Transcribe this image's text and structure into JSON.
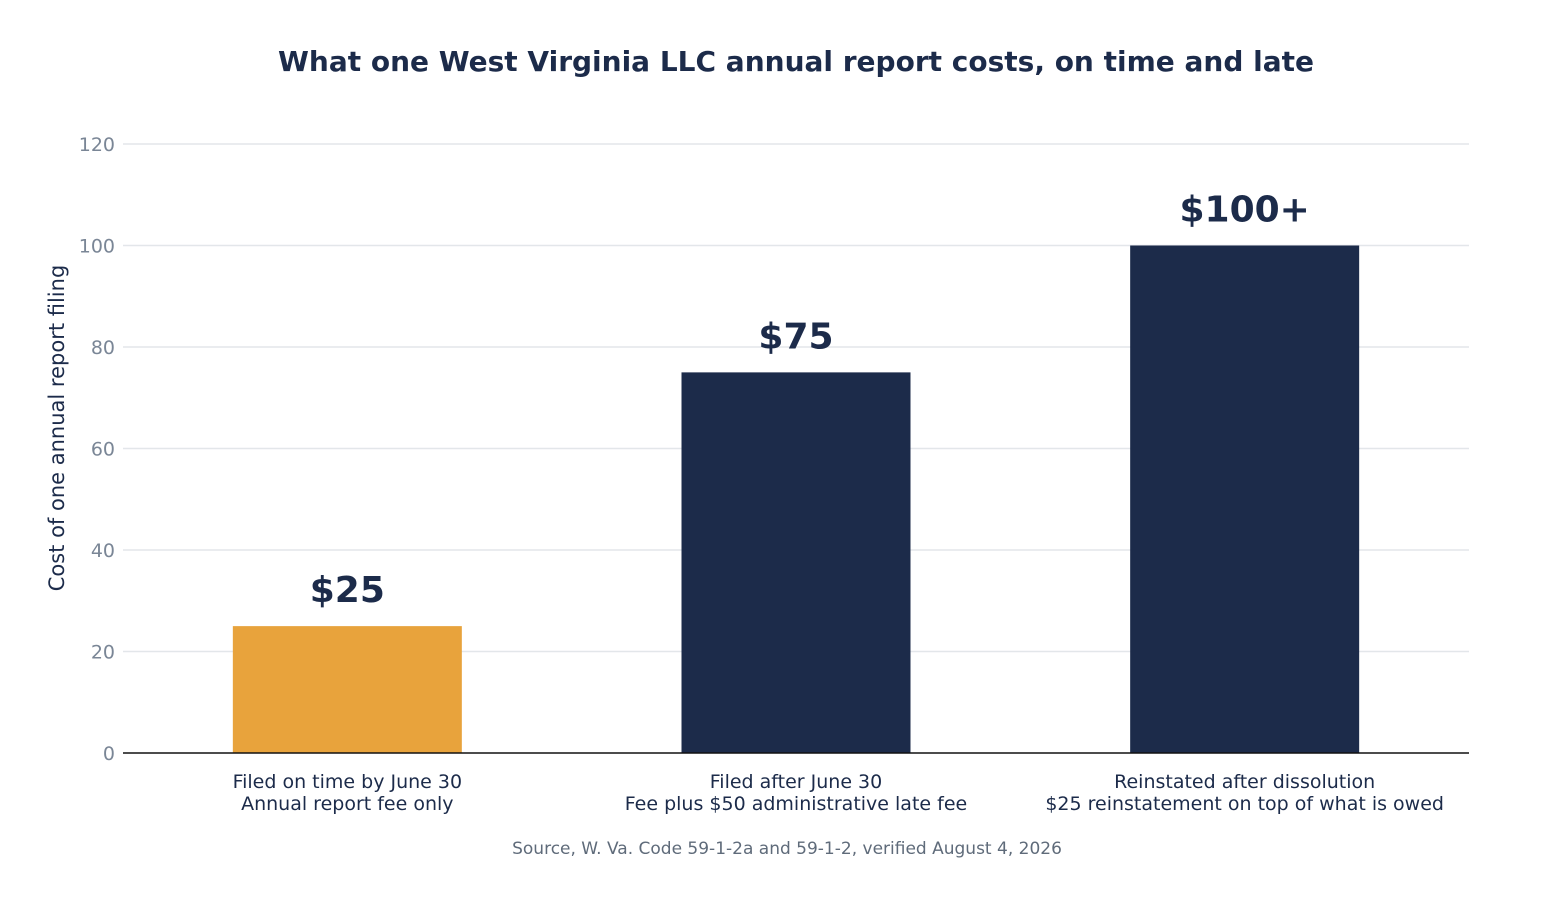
{
  "chart_data": {
    "type": "bar",
    "title": "What one West Virginia LLC annual report costs, on time and late",
    "ylabel": "Cost of one annual report filing",
    "xlabel": "",
    "ylim": [
      0,
      120
    ],
    "yticks": [
      0,
      20,
      40,
      60,
      80,
      100,
      120
    ],
    "grid": true,
    "categories": [
      [
        "Filed on time by June 30",
        "Annual report fee only"
      ],
      [
        "Filed after June 30",
        "Fee plus $50 administrative late fee"
      ],
      [
        "Reinstated after dissolution",
        "$25 reinstatement on top of what is owed"
      ]
    ],
    "values": [
      25,
      75,
      100
    ],
    "data_labels": [
      "$25",
      "$75",
      "$100+"
    ],
    "bar_colors": [
      "#e8a33c",
      "#1c2b4a",
      "#1c2b4a"
    ],
    "source": "Source, W. Va. Code 59-1-2a and 59-1-2, verified August 4, 2026"
  },
  "colors": {
    "navy": "#1c2b4a",
    "orange": "#e8a33c",
    "grid": "#e3e6ea",
    "tick_text": "#7a8696"
  }
}
